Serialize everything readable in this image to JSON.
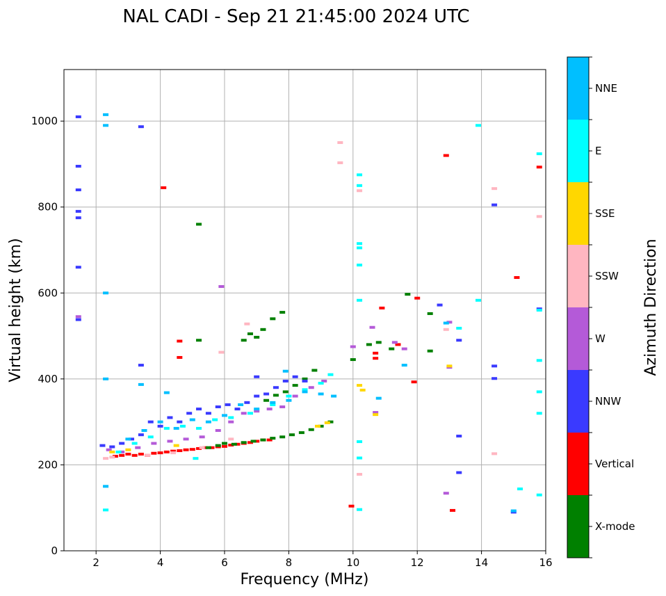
{
  "chart_data": {
    "type": "scatter",
    "title": "NAL CADI - Sep 21 21:45:00 2024 UTC",
    "xlabel": "Frequency (MHz)",
    "ylabel": "Virtual height (km)",
    "xlim": [
      1,
      16
    ],
    "ylim": [
      0,
      1120
    ],
    "xticks": [
      2,
      4,
      6,
      8,
      10,
      12,
      14,
      16
    ],
    "yticks": [
      0,
      200,
      400,
      600,
      800,
      1000
    ],
    "grid": true,
    "colorbar": {
      "label": "Azimuth Direction",
      "categories": [
        {
          "name": "X-mode",
          "color": "#008000"
        },
        {
          "name": "Vertical",
          "color": "#ff0000"
        },
        {
          "name": "NNW",
          "color": "#3a3aff"
        },
        {
          "name": "W",
          "color": "#b45ad8"
        },
        {
          "name": "SSW",
          "color": "#ffb6c1"
        },
        {
          "name": "SSE",
          "color": "#ffd700"
        },
        {
          "name": "E",
          "color": "#00ffff"
        },
        {
          "name": "NNE",
          "color": "#00bfff"
        }
      ]
    },
    "series": [
      {
        "name": "Vertical",
        "points": [
          [
            2.6,
            220
          ],
          [
            2.8,
            222
          ],
          [
            3.0,
            225
          ],
          [
            3.2,
            222
          ],
          [
            3.4,
            225
          ],
          [
            3.6,
            222
          ],
          [
            3.8,
            227
          ],
          [
            4.0,
            228
          ],
          [
            4.2,
            230
          ],
          [
            4.4,
            232
          ],
          [
            4.6,
            233
          ],
          [
            4.8,
            235
          ],
          [
            5.0,
            236
          ],
          [
            5.2,
            238
          ],
          [
            5.4,
            240
          ],
          [
            5.6,
            240
          ],
          [
            5.8,
            242
          ],
          [
            6.0,
            243
          ],
          [
            6.2,
            246
          ],
          [
            6.4,
            248
          ],
          [
            6.6,
            250
          ],
          [
            6.8,
            252
          ],
          [
            7.0,
            255
          ],
          [
            7.2,
            258
          ],
          [
            7.4,
            258
          ],
          [
            10.7,
            448
          ],
          [
            10.7,
            460
          ],
          [
            11.4,
            480
          ],
          [
            10.9,
            565
          ],
          [
            4.1,
            845
          ],
          [
            12.9,
            920
          ],
          [
            15.1,
            636
          ],
          [
            15.8,
            893
          ],
          [
            13.1,
            94
          ],
          [
            9.95,
            104
          ],
          [
            4.6,
            450
          ],
          [
            4.6,
            488
          ],
          [
            12.0,
            588
          ],
          [
            11.9,
            393
          ]
        ]
      },
      {
        "name": "X-mode",
        "points": [
          [
            5.5,
            240
          ],
          [
            5.8,
            245
          ],
          [
            6.0,
            250
          ],
          [
            6.3,
            248
          ],
          [
            6.6,
            252
          ],
          [
            6.9,
            255
          ],
          [
            7.2,
            258
          ],
          [
            7.5,
            262
          ],
          [
            7.8,
            265
          ],
          [
            8.1,
            270
          ],
          [
            8.4,
            275
          ],
          [
            8.7,
            282
          ],
          [
            9.0,
            290
          ],
          [
            9.3,
            300
          ],
          [
            7.3,
            350
          ],
          [
            7.6,
            362
          ],
          [
            7.9,
            370
          ],
          [
            8.2,
            385
          ],
          [
            8.5,
            400
          ],
          [
            8.8,
            420
          ],
          [
            6.6,
            490
          ],
          [
            6.8,
            505
          ],
          [
            7.0,
            497
          ],
          [
            7.2,
            515
          ],
          [
            7.5,
            540
          ],
          [
            7.8,
            555
          ],
          [
            10.0,
            445
          ],
          [
            10.5,
            480
          ],
          [
            10.8,
            485
          ],
          [
            11.2,
            470
          ],
          [
            12.4,
            552
          ],
          [
            12.4,
            465
          ],
          [
            11.7,
            597
          ],
          [
            5.2,
            760
          ],
          [
            5.2,
            490
          ]
        ]
      },
      {
        "name": "NNW",
        "points": [
          [
            1.45,
            1010
          ],
          [
            1.45,
            895
          ],
          [
            1.45,
            840
          ],
          [
            1.45,
            790
          ],
          [
            1.45,
            775
          ],
          [
            1.45,
            660
          ],
          [
            1.45,
            538
          ],
          [
            2.2,
            245
          ],
          [
            2.5,
            242
          ],
          [
            2.8,
            250
          ],
          [
            3.1,
            260
          ],
          [
            3.4,
            270
          ],
          [
            3.7,
            300
          ],
          [
            4.0,
            290
          ],
          [
            4.3,
            310
          ],
          [
            4.6,
            300
          ],
          [
            4.9,
            320
          ],
          [
            5.2,
            330
          ],
          [
            5.5,
            320
          ],
          [
            5.8,
            335
          ],
          [
            6.1,
            340
          ],
          [
            6.4,
            330
          ],
          [
            6.7,
            345
          ],
          [
            7.0,
            360
          ],
          [
            7.3,
            365
          ],
          [
            7.6,
            380
          ],
          [
            7.9,
            395
          ],
          [
            8.2,
            405
          ],
          [
            8.5,
            395
          ],
          [
            3.4,
            987
          ],
          [
            3.4,
            432
          ],
          [
            7.0,
            405
          ],
          [
            13.3,
            490
          ],
          [
            14.4,
            805
          ],
          [
            14.4,
            430
          ],
          [
            14.4,
            401
          ],
          [
            15.0,
            90
          ],
          [
            15.8,
            563
          ],
          [
            13.3,
            267
          ],
          [
            13.3,
            182
          ],
          [
            12.7,
            572
          ]
        ]
      },
      {
        "name": "W",
        "points": [
          [
            2.4,
            235
          ],
          [
            2.8,
            230
          ],
          [
            3.3,
            240
          ],
          [
            3.8,
            250
          ],
          [
            4.3,
            255
          ],
          [
            4.8,
            260
          ],
          [
            5.3,
            265
          ],
          [
            5.8,
            280
          ],
          [
            6.2,
            300
          ],
          [
            6.6,
            320
          ],
          [
            7.0,
            325
          ],
          [
            7.4,
            330
          ],
          [
            7.8,
            335
          ],
          [
            8.2,
            360
          ],
          [
            8.7,
            380
          ],
          [
            9.1,
            395
          ],
          [
            10.0,
            475
          ],
          [
            10.6,
            520
          ],
          [
            11.3,
            485
          ],
          [
            11.6,
            470
          ],
          [
            13.0,
            532
          ],
          [
            13.0,
            427
          ],
          [
            12.9,
            134
          ],
          [
            5.9,
            615
          ],
          [
            1.45,
            545
          ],
          [
            10.7,
            322
          ]
        ]
      },
      {
        "name": "SSW",
        "points": [
          [
            2.3,
            215
          ],
          [
            2.5,
            218
          ],
          [
            3.6,
            222
          ],
          [
            4.4,
            228
          ],
          [
            5.3,
            240
          ],
          [
            6.2,
            260
          ],
          [
            6.7,
            528
          ],
          [
            9.6,
            950
          ],
          [
            9.6,
            903
          ],
          [
            10.2,
            838
          ],
          [
            10.2,
            178
          ],
          [
            14.4,
            843
          ],
          [
            14.4,
            226
          ],
          [
            15.8,
            778
          ],
          [
            12.9,
            515
          ],
          [
            5.9,
            462
          ]
        ]
      },
      {
        "name": "SSE",
        "points": [
          [
            2.5,
            230
          ],
          [
            3.0,
            235
          ],
          [
            4.5,
            245
          ],
          [
            8.9,
            290
          ],
          [
            9.2,
            298
          ],
          [
            10.2,
            385
          ],
          [
            10.7,
            317
          ],
          [
            13.0,
            430
          ],
          [
            10.3,
            374
          ]
        ]
      },
      {
        "name": "E",
        "points": [
          [
            2.3,
            95
          ],
          [
            2.7,
            230
          ],
          [
            3.2,
            250
          ],
          [
            3.7,
            265
          ],
          [
            4.2,
            285
          ],
          [
            4.7,
            290
          ],
          [
            5.2,
            285
          ],
          [
            5.7,
            305
          ],
          [
            6.2,
            310
          ],
          [
            6.8,
            320
          ],
          [
            7.5,
            340
          ],
          [
            8.0,
            360
          ],
          [
            8.5,
            375
          ],
          [
            9.0,
            390
          ],
          [
            9.3,
            410
          ],
          [
            10.2,
            875
          ],
          [
            10.2,
            850
          ],
          [
            10.2,
            715
          ],
          [
            10.2,
            705
          ],
          [
            10.2,
            665
          ],
          [
            10.2,
            583
          ],
          [
            10.2,
            254
          ],
          [
            10.2,
            216
          ],
          [
            10.2,
            96
          ],
          [
            13.9,
            990
          ],
          [
            13.9,
            583
          ],
          [
            13.3,
            518
          ],
          [
            15.8,
            924
          ],
          [
            15.8,
            560
          ],
          [
            15.8,
            443
          ],
          [
            15.8,
            370
          ],
          [
            15.8,
            320
          ],
          [
            15.8,
            130
          ],
          [
            15.2,
            144
          ],
          [
            5.1,
            215
          ]
        ]
      },
      {
        "name": "NNE",
        "points": [
          [
            2.3,
            1015
          ],
          [
            2.3,
            990
          ],
          [
            2.3,
            600
          ],
          [
            2.3,
            400
          ],
          [
            2.3,
            150
          ],
          [
            3.0,
            260
          ],
          [
            3.5,
            280
          ],
          [
            4.0,
            300
          ],
          [
            4.5,
            285
          ],
          [
            5.0,
            305
          ],
          [
            5.5,
            300
          ],
          [
            6.0,
            315
          ],
          [
            6.5,
            340
          ],
          [
            7.0,
            330
          ],
          [
            7.5,
            345
          ],
          [
            8.0,
            350
          ],
          [
            8.5,
            370
          ],
          [
            9.0,
            365
          ],
          [
            9.4,
            360
          ],
          [
            3.4,
            387
          ],
          [
            4.2,
            368
          ],
          [
            7.9,
            418
          ],
          [
            15.0,
            93
          ],
          [
            12.9,
            530
          ],
          [
            10.8,
            355
          ],
          [
            11.6,
            432
          ]
        ]
      }
    ]
  }
}
